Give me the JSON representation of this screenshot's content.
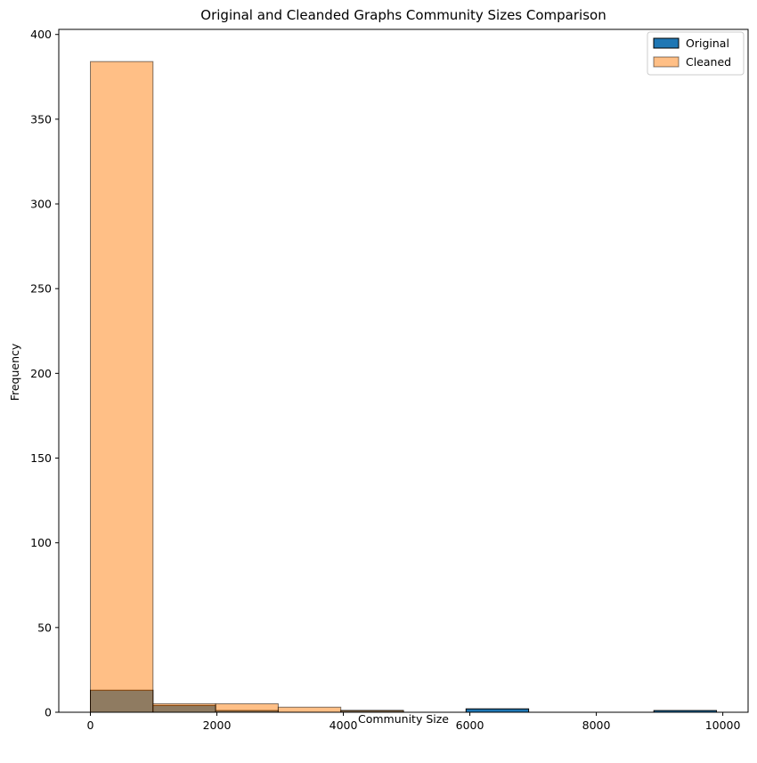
{
  "chart_data": {
    "type": "bar",
    "subtype": "overlapping-histogram",
    "title": "Original and Cleanded Graphs Community Sizes Comparison",
    "xlabel": "Community Size",
    "ylabel": "Frequency",
    "xlim": [
      -500,
      10400
    ],
    "ylim": [
      0,
      403
    ],
    "xticks": [
      0,
      2000,
      4000,
      6000,
      8000,
      10000
    ],
    "yticks": [
      0,
      50,
      100,
      150,
      200,
      250,
      300,
      350,
      400
    ],
    "grid": false,
    "legend": {
      "position": "top-right"
    },
    "series": [
      {
        "name": "Original",
        "color": "#1f77b4",
        "opacity": 1,
        "edgecolor": "#000000",
        "bins": [
          {
            "x0": 0,
            "x1": 990,
            "value": 13
          },
          {
            "x0": 990,
            "x1": 1980,
            "value": 4
          },
          {
            "x0": 1980,
            "x1": 2970,
            "value": 1
          },
          {
            "x0": 2970,
            "x1": 3960,
            "value": 0
          },
          {
            "x0": 3960,
            "x1": 4950,
            "value": 1
          },
          {
            "x0": 4950,
            "x1": 5940,
            "value": 0
          },
          {
            "x0": 5940,
            "x1": 6930,
            "value": 2
          },
          {
            "x0": 6930,
            "x1": 7920,
            "value": 0
          },
          {
            "x0": 7920,
            "x1": 8910,
            "value": 0
          },
          {
            "x0": 8910,
            "x1": 9900,
            "value": 1
          }
        ]
      },
      {
        "name": "Cleaned",
        "color": "#ff7f0e",
        "opacity": 0.5,
        "edgecolor": "#000000",
        "bins": [
          {
            "x0": 0,
            "x1": 990,
            "value": 384
          },
          {
            "x0": 990,
            "x1": 1980,
            "value": 5
          },
          {
            "x0": 1980,
            "x1": 2970,
            "value": 5
          },
          {
            "x0": 2970,
            "x1": 3960,
            "value": 3
          },
          {
            "x0": 3960,
            "x1": 4950,
            "value": 1
          }
        ]
      }
    ]
  }
}
